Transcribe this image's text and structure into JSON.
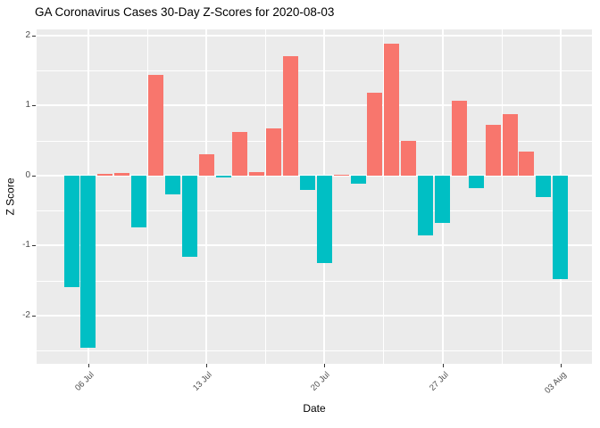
{
  "chart_data": {
    "type": "bar",
    "title": "GA Coronavirus Cases 30-Day Z-Scores for 2020-08-03",
    "xlabel": "Date",
    "ylabel": "Z Score",
    "categories": [
      "05 Jul",
      "06 Jul",
      "07 Jul",
      "08 Jul",
      "09 Jul",
      "10 Jul",
      "11 Jul",
      "12 Jul",
      "13 Jul",
      "14 Jul",
      "15 Jul",
      "16 Jul",
      "17 Jul",
      "18 Jul",
      "19 Jul",
      "20 Jul",
      "21 Jul",
      "22 Jul",
      "23 Jul",
      "24 Jul",
      "25 Jul",
      "26 Jul",
      "27 Jul",
      "28 Jul",
      "29 Jul",
      "30 Jul",
      "31 Jul",
      "01 Aug",
      "02 Aug",
      "03 Aug"
    ],
    "values": [
      -1.59,
      -2.45,
      0.02,
      0.04,
      -0.74,
      1.44,
      -0.27,
      -1.16,
      0.31,
      -0.02,
      0.62,
      0.05,
      0.67,
      1.7,
      -0.2,
      -1.25,
      0.01,
      -0.11,
      1.18,
      1.88,
      0.5,
      -0.85,
      -0.67,
      1.07,
      -0.18,
      0.73,
      0.88,
      0.34,
      -0.31,
      -1.48
    ],
    "positive_color": "#F8766D",
    "negative_color": "#00BFC4",
    "panel_bg": "#EBEBEB",
    "grid_color": "#FFFFFF",
    "tick_color": "#333333",
    "tick_label_color": "#4D4D4D",
    "x_tick_labels": [
      "06 Jul",
      "13 Jul",
      "20 Jul",
      "27 Jul",
      "03 Aug"
    ],
    "x_tick_positions": [
      1,
      8,
      15,
      22,
      29
    ],
    "x_minor_positions": [
      4.5,
      11.5,
      18.5,
      25.5
    ],
    "y_tick_labels": [
      "2",
      "1",
      "0",
      "-1",
      "-2"
    ],
    "y_tick_values": [
      2,
      1,
      0,
      -1,
      -2
    ],
    "y_minor_values": [
      1.5,
      0.5,
      -0.5,
      -1.5,
      -2.5
    ],
    "ylim": [
      -2.686,
      2.085
    ],
    "xlim_days": [
      -2.07,
      30.87
    ],
    "bar_width_days": 0.9,
    "grid": true,
    "legend": "none"
  }
}
